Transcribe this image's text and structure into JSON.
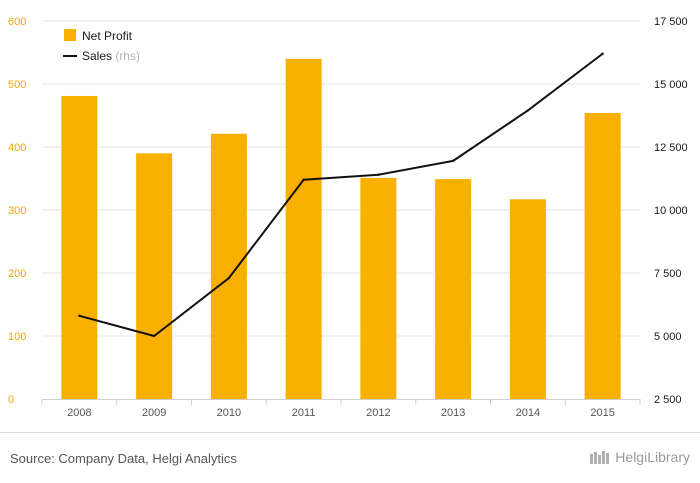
{
  "chart_data": {
    "type": "bar",
    "categories": [
      "2008",
      "2009",
      "2010",
      "2011",
      "2012",
      "2013",
      "2014",
      "2015"
    ],
    "series": [
      {
        "name": "Net Profit",
        "type": "bar",
        "axis": "left",
        "color": "#f9b000",
        "values": [
          481,
          390,
          421,
          540,
          351,
          349,
          317,
          454
        ]
      },
      {
        "name": "Sales",
        "name_suffix": "(rhs)",
        "type": "line",
        "axis": "right",
        "color": "#111111",
        "values": [
          5800,
          5000,
          7300,
          11200,
          11400,
          11950,
          13950,
          16200
        ]
      }
    ],
    "y_left": {
      "min": 0,
      "max": 600,
      "ticks": [
        "0",
        "100",
        "200",
        "300",
        "400",
        "500",
        "600"
      ],
      "color": "#f2a900"
    },
    "y_right": {
      "min": 2500,
      "max": 17500,
      "ticks": [
        "2 500",
        "5 000",
        "7 500",
        "10 000",
        "12 500",
        "15 000",
        "17 500"
      ]
    },
    "grid": "horizontal",
    "legend_position": "top-left"
  },
  "footer": {
    "source": "Source: Company Data, Helgi Analytics",
    "brand": "HelgiLibrary"
  }
}
